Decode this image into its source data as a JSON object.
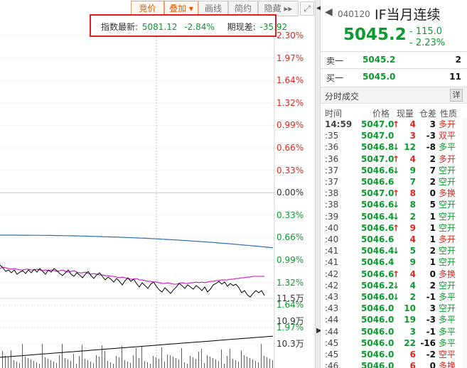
{
  "toolbar": {
    "buttons": [
      "竞价",
      "叠加 ▾",
      "画线",
      "简约",
      "隐藏 ▸▸"
    ],
    "corner_icon": "expand-icon"
  },
  "info_box": {
    "index_label": "指数最新:",
    "index_value": "5081.12",
    "index_change": "-2.84%",
    "basis_label": "期现差:",
    "basis_value": "-35.92"
  },
  "axis": {
    "pct_labels": [
      {
        "text": "2.30%",
        "color": "#e0251a"
      },
      {
        "text": "1.97%",
        "color": "#e0251a"
      },
      {
        "text": "1.64%",
        "color": "#e0251a"
      },
      {
        "text": "1.32%",
        "color": "#e0251a"
      },
      {
        "text": "0.99%",
        "color": "#e0251a"
      },
      {
        "text": "0.66%",
        "color": "#e0251a"
      },
      {
        "text": "0.33%",
        "color": "#e0251a"
      },
      {
        "text": "0.00%",
        "color": "#333333"
      },
      {
        "text": "0.33%",
        "color": "#0a9a2e"
      },
      {
        "text": "0.66%",
        "color": "#0a9a2e"
      },
      {
        "text": "0.99%",
        "color": "#0a9a2e"
      },
      {
        "text": "1.32%",
        "color": "#0a9a2e"
      },
      {
        "text": "1.64%",
        "color": "#0a9a2e"
      },
      {
        "text": "1.97%",
        "color": "#0a9a2e"
      }
    ],
    "vol_labels": [
      "11.5万",
      "10.9万",
      "10.3万"
    ]
  },
  "colors": {
    "up": "#e0251a",
    "down": "#0a9a2e",
    "price_line": "#000000",
    "avg_line": "#c000c0",
    "position_line": "#2a6fb0"
  },
  "header": {
    "code": "040120",
    "name": "IF当月连续",
    "price": "5045.2",
    "change": "- 115.0",
    "change_pct": "- 2.23%"
  },
  "orderbook": [
    {
      "label": "卖一",
      "price": "5045.2",
      "volume": "2"
    },
    {
      "label": "买一",
      "price": "5045.0",
      "volume": "11"
    }
  ],
  "ticks_section": {
    "title": "分时成交",
    "detail_label": "详",
    "columns": [
      "时间",
      "价格",
      "现量",
      "仓差",
      "性质"
    ]
  },
  "ticks": [
    {
      "time": "14:59",
      "price": "5047.0",
      "arrow": "up",
      "vol": "4",
      "diff": "3",
      "nature": "多开",
      "nc": "red"
    },
    {
      "time": ":35",
      "price": "5047.0",
      "arrow": "",
      "vol": "3",
      "diff": "-3",
      "nature": "双平",
      "nc": "red"
    },
    {
      "time": ":36",
      "price": "5046.8",
      "arrow": "down",
      "vol": "12",
      "diff": "-8",
      "nature": "多平",
      "nc": "green"
    },
    {
      "time": ":36",
      "price": "5047.0",
      "arrow": "up",
      "vol": "4",
      "diff": "2",
      "nature": "多开",
      "nc": "red"
    },
    {
      "time": ":37",
      "price": "5046.6",
      "arrow": "down",
      "vol": "9",
      "diff": "7",
      "nature": "空开",
      "nc": "green"
    },
    {
      "time": ":37",
      "price": "5046.6",
      "arrow": "",
      "vol": "7",
      "diff": "2",
      "nature": "空开",
      "nc": "green"
    },
    {
      "time": ":38",
      "price": "5047.0",
      "arrow": "up",
      "vol": "8",
      "diff": "0",
      "nature": "多换",
      "nc": "red"
    },
    {
      "time": ":38",
      "price": "5046.6",
      "arrow": "down",
      "vol": "8",
      "diff": "5",
      "nature": "空开",
      "nc": "green"
    },
    {
      "time": ":39",
      "price": "5046.4",
      "arrow": "down",
      "vol": "2",
      "diff": "1",
      "nature": "空开",
      "nc": "green"
    },
    {
      "time": ":40",
      "price": "5046.6",
      "arrow": "up",
      "vol": "9",
      "diff": "1",
      "nature": "空开",
      "nc": "green"
    },
    {
      "time": ":40",
      "price": "5046.6",
      "arrow": "",
      "vol": "4",
      "diff": "1",
      "nature": "多开",
      "nc": "red"
    },
    {
      "time": ":41",
      "price": "5046.4",
      "arrow": "down",
      "vol": "5",
      "diff": "2",
      "nature": "空开",
      "nc": "green"
    },
    {
      "time": ":41",
      "price": "5046.4",
      "arrow": "",
      "vol": "9",
      "diff": "1",
      "nature": "空开",
      "nc": "green"
    },
    {
      "time": ":42",
      "price": "5046.6",
      "arrow": "up",
      "vol": "4",
      "diff": "0",
      "nature": "多换",
      "nc": "red"
    },
    {
      "time": ":42",
      "price": "5046.2",
      "arrow": "down",
      "vol": "4",
      "diff": "2",
      "nature": "空开",
      "nc": "green"
    },
    {
      "time": ":43",
      "price": "5046.0",
      "arrow": "down",
      "vol": "2",
      "diff": "-1",
      "nature": "多平",
      "nc": "green"
    },
    {
      "time": ":43",
      "price": "5046.0",
      "arrow": "",
      "vol": "10",
      "diff": "3",
      "nature": "空开",
      "nc": "green"
    },
    {
      "time": ":44",
      "price": "5046.0",
      "arrow": "",
      "vol": "19",
      "diff": "-3",
      "nature": "多平",
      "nc": "green"
    },
    {
      "time": ":44",
      "price": "5046.0",
      "arrow": "",
      "vol": "3",
      "diff": "-1",
      "nature": "多平",
      "nc": "green"
    },
    {
      "time": ":45",
      "price": "5046.0",
      "arrow": "",
      "vol": "22",
      "diff": "-16",
      "nature": "多平",
      "nc": "green"
    },
    {
      "time": ":45",
      "price": "5046.0",
      "arrow": "",
      "vol": "6",
      "diff": "-2",
      "nature": "空平",
      "nc": "red"
    },
    {
      "time": ":46",
      "price": "5046.0",
      "arrow": "",
      "vol": "6",
      "diff": "0",
      "nature": "多换",
      "nc": "red"
    }
  ]
}
